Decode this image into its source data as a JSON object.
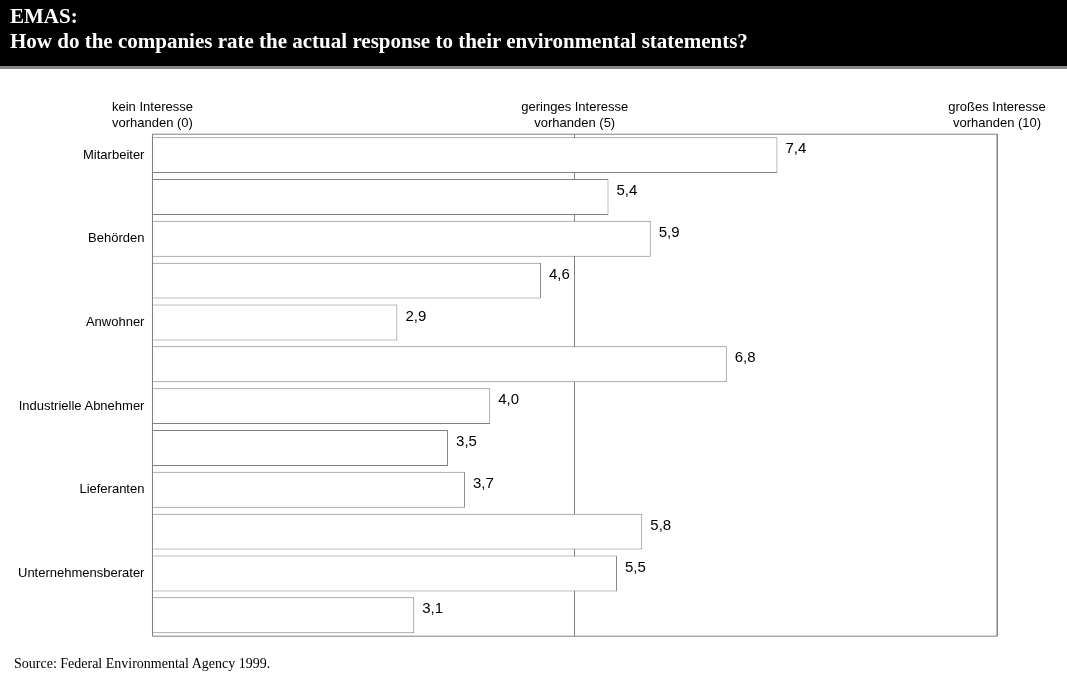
{
  "chart_data": {
    "type": "bar",
    "orientation": "horizontal",
    "title": "EMAS:",
    "subtitle": "How do the companies rate the actual response to their environmental statements?",
    "categories": [
      "Mitarbeiter",
      null,
      "Behörden",
      null,
      "Anwohner",
      null,
      "Industrielle Abnehmer",
      null,
      "Lieferanten",
      null,
      "Unternehmensberater",
      null
    ],
    "values": [
      7.4,
      5.4,
      5.9,
      4.6,
      2.9,
      6.8,
      4.0,
      3.5,
      3.7,
      5.8,
      5.5,
      3.1
    ],
    "value_labels": [
      "7,4",
      "5,4",
      "5,9",
      "4,6",
      "2,9",
      "6,8",
      "4,0",
      "3,5",
      "3,7",
      "5,8",
      "5,5",
      "3,1"
    ],
    "color": "#ffffff",
    "xlim": [
      0,
      10
    ],
    "xticks": [
      {
        "value": 0,
        "label": "kein Interesse\nvorhanden (0)"
      },
      {
        "value": 5,
        "label": "geringes Interesse\nvorhanden (5)"
      },
      {
        "value": 10,
        "label": "großes Interesse\nvorhanden (10)"
      }
    ],
    "grid": "x",
    "annotations": [
      "Source: Federal Environmental Agency 1999."
    ]
  }
}
